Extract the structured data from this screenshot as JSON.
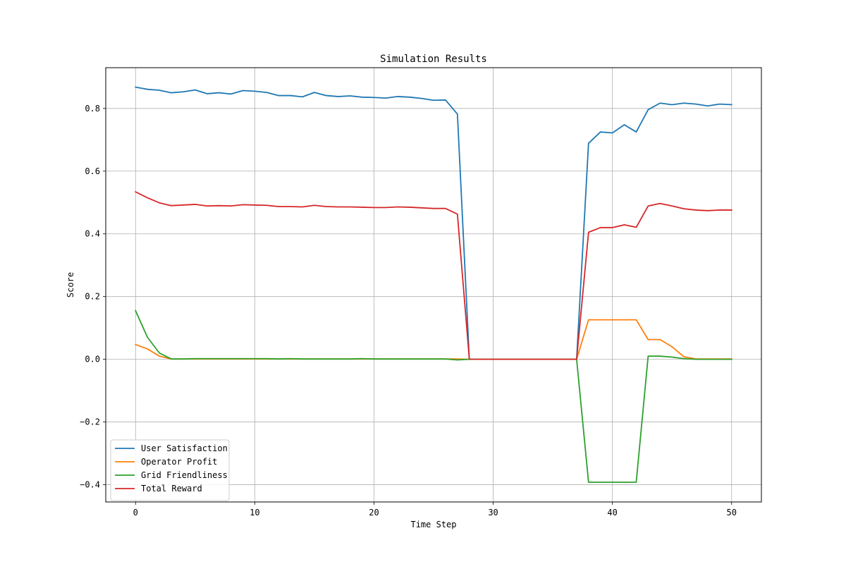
{
  "chart_data": {
    "type": "line",
    "title": "Simulation Results",
    "xlabel": "Time Step",
    "ylabel": "Score",
    "xlim": [
      -2.5,
      52.5
    ],
    "ylim": [
      -0.455,
      0.93
    ],
    "xticks": [
      0,
      10,
      20,
      30,
      40,
      50
    ],
    "xtick_labels": [
      "0",
      "10",
      "20",
      "30",
      "40",
      "50"
    ],
    "yticks": [
      -0.4,
      -0.2,
      0.0,
      0.2,
      0.4,
      0.6,
      0.8
    ],
    "ytick_labels": [
      "−0.4",
      "−0.2",
      "0.0",
      "0.2",
      "0.4",
      "0.6",
      "0.8"
    ],
    "grid": true,
    "legend_position": "lower-left",
    "x": [
      0,
      1,
      2,
      3,
      4,
      5,
      6,
      7,
      8,
      9,
      10,
      11,
      12,
      13,
      14,
      15,
      16,
      17,
      18,
      19,
      20,
      21,
      22,
      23,
      24,
      25,
      26,
      27,
      28,
      29,
      30,
      31,
      32,
      33,
      34,
      35,
      36,
      37,
      38,
      39,
      40,
      41,
      42,
      43,
      44,
      45,
      46,
      47,
      48,
      49,
      50
    ],
    "series": [
      {
        "name": "User Satisfaction",
        "color": "#1f77b4",
        "values": [
          0.868,
          0.861,
          0.858,
          0.85,
          0.853,
          0.859,
          0.847,
          0.85,
          0.846,
          0.857,
          0.855,
          0.851,
          0.841,
          0.841,
          0.837,
          0.851,
          0.841,
          0.838,
          0.84,
          0.836,
          0.835,
          0.833,
          0.838,
          0.836,
          0.832,
          0.826,
          0.827,
          0.782,
          0.0,
          0.0,
          0.0,
          0.0,
          0.0,
          0.0,
          0.0,
          0.0,
          0.0,
          0.0,
          0.689,
          0.725,
          0.722,
          0.748,
          0.725,
          0.796,
          0.817,
          0.812,
          0.817,
          0.814,
          0.808,
          0.814,
          0.812
        ]
      },
      {
        "name": "Operator Profit",
        "color": "#ff7f0e",
        "values": [
          0.047,
          0.033,
          0.01,
          0.001,
          0.001,
          0.001,
          0.001,
          0.001,
          0.001,
          0.001,
          0.001,
          0.001,
          0.001,
          0.001,
          0.001,
          0.001,
          0.001,
          0.001,
          0.001,
          0.001,
          0.001,
          0.001,
          0.001,
          0.001,
          0.001,
          0.001,
          0.001,
          0.001,
          0.0,
          0.0,
          0.0,
          0.0,
          0.0,
          0.0,
          0.0,
          0.0,
          0.0,
          0.0,
          0.126,
          0.126,
          0.126,
          0.126,
          0.126,
          0.063,
          0.063,
          0.04,
          0.008,
          0.001,
          0.001,
          0.001,
          0.001
        ]
      },
      {
        "name": "Grid Friendliness",
        "color": "#2ca02c",
        "values": [
          0.155,
          0.07,
          0.02,
          0.001,
          0.001,
          0.002,
          0.002,
          0.002,
          0.002,
          0.002,
          0.002,
          0.002,
          0.001,
          0.002,
          0.001,
          0.001,
          0.001,
          0.001,
          0.001,
          0.002,
          0.001,
          0.001,
          0.001,
          0.001,
          0.001,
          0.001,
          0.001,
          -0.002,
          0.0,
          0.0,
          0.0,
          0.0,
          0.0,
          0.0,
          0.0,
          0.0,
          0.0,
          0.0,
          -0.392,
          -0.392,
          -0.392,
          -0.392,
          -0.392,
          0.01,
          0.01,
          0.007,
          0.002,
          0.0,
          0.0,
          0.0,
          0.0
        ]
      },
      {
        "name": "Total Reward",
        "color": "#d62728",
        "values": [
          0.534,
          0.515,
          0.499,
          0.49,
          0.492,
          0.494,
          0.489,
          0.49,
          0.489,
          0.493,
          0.492,
          0.491,
          0.487,
          0.487,
          0.486,
          0.491,
          0.487,
          0.486,
          0.486,
          0.485,
          0.484,
          0.484,
          0.486,
          0.485,
          0.483,
          0.481,
          0.481,
          0.463,
          0.0,
          0.0,
          0.0,
          0.0,
          0.0,
          0.0,
          0.0,
          0.0,
          0.0,
          0.0,
          0.405,
          0.42,
          0.42,
          0.429,
          0.421,
          0.489,
          0.497,
          0.489,
          0.48,
          0.476,
          0.474,
          0.476,
          0.476
        ]
      }
    ]
  }
}
